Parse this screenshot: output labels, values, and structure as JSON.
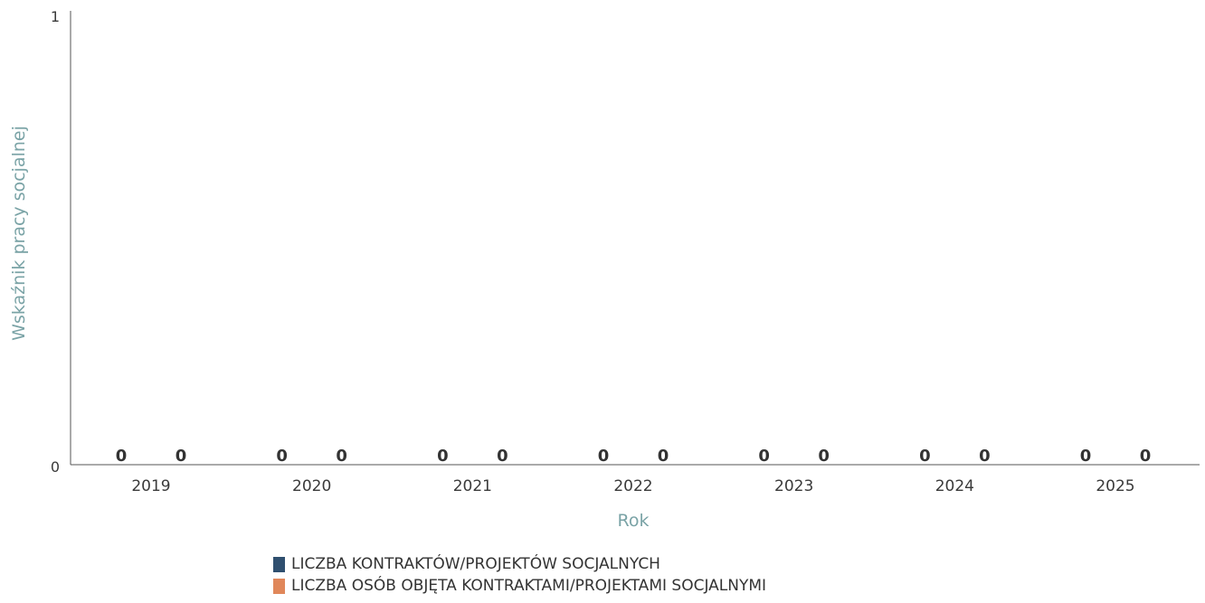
{
  "chart_data": {
    "type": "bar",
    "title": "",
    "xlabel": "Rok",
    "ylabel": "Wskaźnik pracy socjalnej",
    "ylim": [
      0,
      1
    ],
    "yticks": [
      "0",
      "1"
    ],
    "grid": false,
    "legend_position": "bottom",
    "categories": [
      "2019",
      "2020",
      "2021",
      "2022",
      "2023",
      "2024",
      "2025"
    ],
    "series": [
      {
        "name": "LICZBA KONTRAKTÓW/PROJEKTÓW SOCJALNYCH",
        "color": "#2f4f6f",
        "values": [
          0,
          0,
          0,
          0,
          0,
          0,
          0
        ],
        "labels": [
          "0",
          "0",
          "0",
          "0",
          "0",
          "0",
          "0"
        ]
      },
      {
        "name": "LICZBA OSÓB OBJĘTA KONTRAKTAMI/PROJEKTAMI SOCJALNYMI",
        "color": "#e0875a",
        "values": [
          0,
          0,
          0,
          0,
          0,
          0,
          0
        ],
        "labels": [
          "0",
          "0",
          "0",
          "0",
          "0",
          "0",
          "0"
        ]
      }
    ]
  }
}
